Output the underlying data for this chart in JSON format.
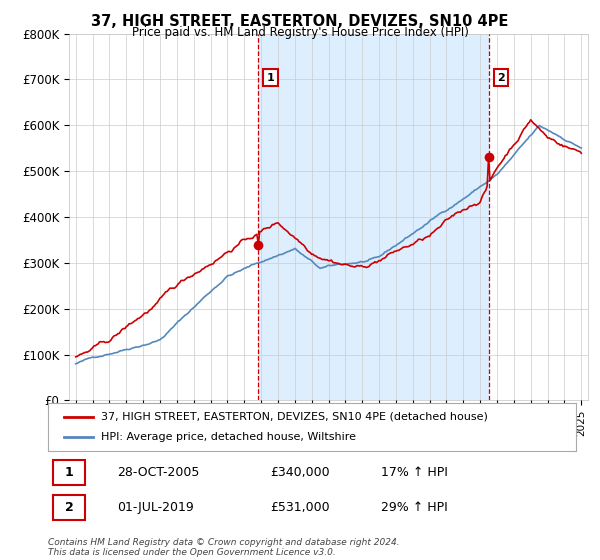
{
  "title": "37, HIGH STREET, EASTERTON, DEVIZES, SN10 4PE",
  "subtitle": "Price paid vs. HM Land Registry's House Price Index (HPI)",
  "ylabel_ticks": [
    "£0",
    "£100K",
    "£200K",
    "£300K",
    "£400K",
    "£500K",
    "£600K",
    "£700K",
    "£800K"
  ],
  "ylim": [
    0,
    800000
  ],
  "ytick_vals": [
    0,
    100000,
    200000,
    300000,
    400000,
    500000,
    600000,
    700000,
    800000
  ],
  "legend_label_red": "37, HIGH STREET, EASTERTON, DEVIZES, SN10 4PE (detached house)",
  "legend_label_blue": "HPI: Average price, detached house, Wiltshire",
  "transaction1_label": "1",
  "transaction1_date": "28-OCT-2005",
  "transaction1_price": "£340,000",
  "transaction1_hpi": "17% ↑ HPI",
  "transaction2_label": "2",
  "transaction2_date": "01-JUL-2019",
  "transaction2_price": "£531,000",
  "transaction2_hpi": "29% ↑ HPI",
  "footer": "Contains HM Land Registry data © Crown copyright and database right 2024.\nThis data is licensed under the Open Government Licence v3.0.",
  "red_color": "#cc0000",
  "blue_color": "#5588bb",
  "shade_color": "#ddeeff",
  "grid_color": "#cccccc",
  "background_color": "#ffffff",
  "t1_x": 2005.83,
  "t1_y": 340000,
  "t2_x": 2019.5,
  "t2_y": 531000,
  "xlim_left": 1994.6,
  "xlim_right": 2025.4
}
